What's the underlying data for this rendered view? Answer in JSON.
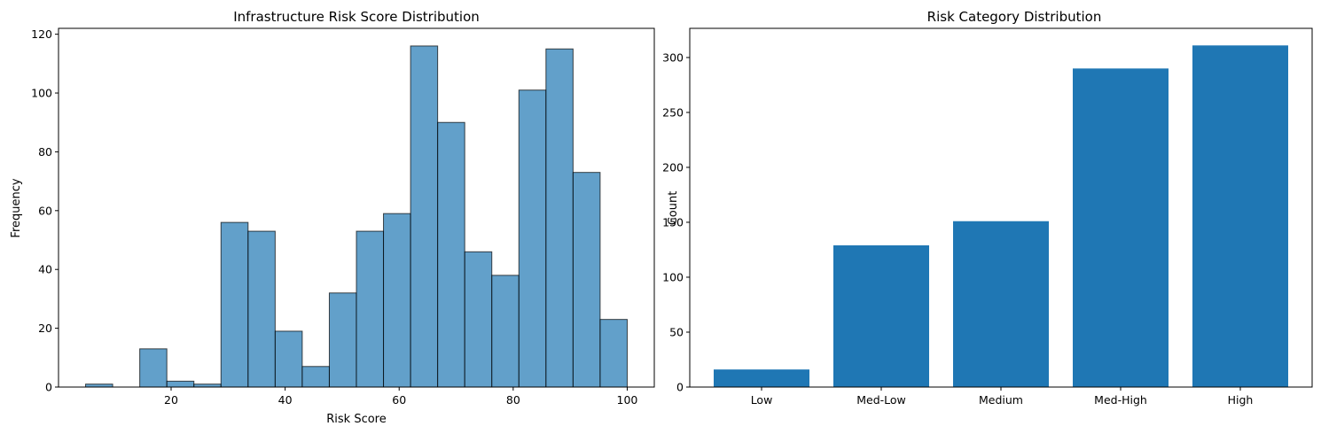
{
  "chart_data": [
    {
      "type": "bar",
      "title": "Infrastructure Risk Score Distribution",
      "xlabel": "Risk Score",
      "ylabel": "Frequency",
      "xlim": [
        0.25,
        104.75
      ],
      "ylim": [
        0,
        122
      ],
      "xticks": [
        20,
        40,
        60,
        80,
        100
      ],
      "yticks": [
        0,
        20,
        40,
        60,
        80,
        100,
        120
      ],
      "bin_edges": [
        5,
        9.75,
        14.5,
        19.25,
        24,
        28.75,
        33.5,
        38.25,
        43,
        47.75,
        52.5,
        57.25,
        62,
        66.75,
        71.5,
        76.25,
        81,
        85.75,
        90.5,
        95.25,
        100
      ],
      "values": [
        1,
        0,
        13,
        2,
        1,
        56,
        53,
        19,
        7,
        32,
        53,
        59,
        116,
        90,
        46,
        38,
        101,
        115,
        73,
        23
      ],
      "bar_color": "#1f77b4",
      "bar_opacity": 0.7,
      "edge_color": "#000000",
      "grid": false,
      "legend": "none"
    },
    {
      "type": "bar",
      "title": "Risk Category Distribution",
      "xlabel": "",
      "ylabel": "Count",
      "categories": [
        "Low",
        "Med-Low",
        "Medium",
        "Med-High",
        "High"
      ],
      "values": [
        16,
        129,
        151,
        290,
        311
      ],
      "ylim": [
        0,
        326.55
      ],
      "yticks": [
        0,
        50,
        100,
        150,
        200,
        250,
        300
      ],
      "bar_color": "#1f77b4",
      "grid": false,
      "legend": "none"
    }
  ]
}
